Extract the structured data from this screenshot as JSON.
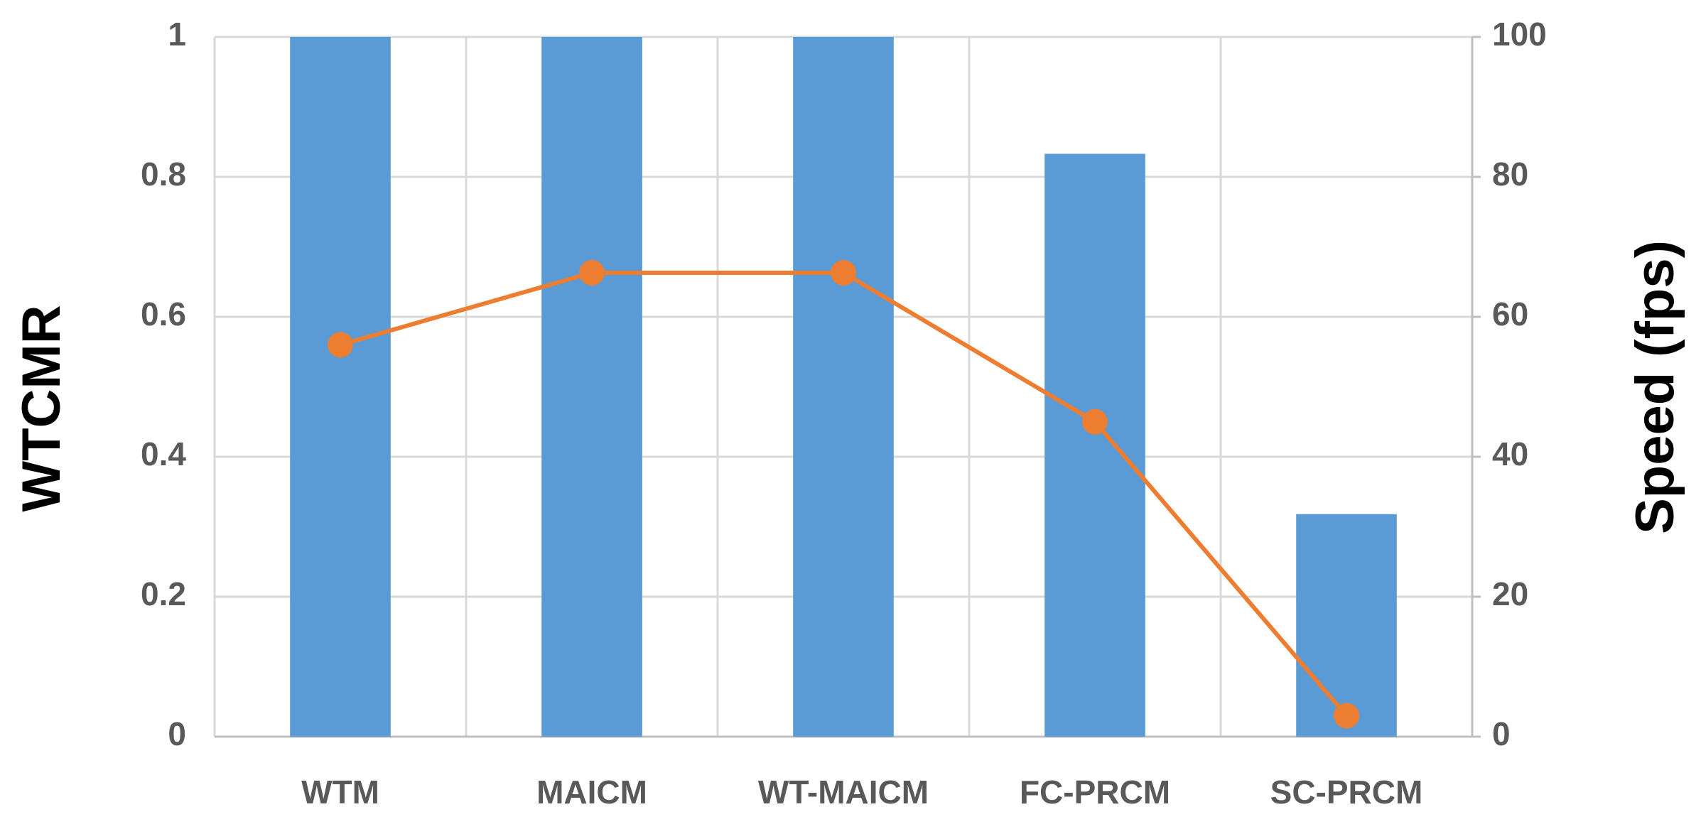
{
  "chart_data": {
    "type": "bar",
    "categories": [
      "WTM",
      "MAICM",
      "WT-MAICM",
      "FC-PRCM",
      "SC-PRCM"
    ],
    "ylabel": "WTCMR",
    "y2label": "Speed (fps)",
    "series": [
      {
        "type": "bar",
        "color": "#5b9bd5",
        "values": [
          1,
          1,
          1,
          0.833,
          0.318
        ]
      },
      {
        "type": "line",
        "axis": "y2",
        "color": "#ed7d31",
        "values": [
          56,
          66.3,
          66.3,
          45,
          3
        ]
      }
    ],
    "ylim": [
      0,
      1
    ],
    "yticks": [
      0,
      0.2,
      0.4,
      0.6,
      0.8,
      1
    ],
    "y2lim": [
      0,
      100
    ],
    "y2ticks": [
      0,
      20,
      40,
      60,
      80,
      100
    ],
    "grid": true
  }
}
